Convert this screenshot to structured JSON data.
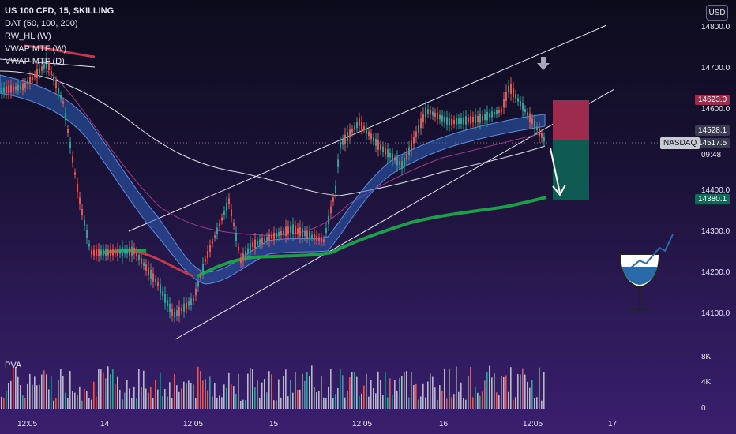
{
  "legend": {
    "title": "US 100 CFD, 15, SKILLING",
    "indicators": [
      "DAT (50, 100, 200)",
      "RW_HL (W)",
      "VWAP MTF (W)",
      "VWAP MTF (D)"
    ]
  },
  "currency_button": "USD",
  "price_axis": {
    "ticks": [
      "14800.0",
      "14700.0",
      "14600.0",
      "14400.0",
      "14300.0",
      "14200.0",
      "14100.0"
    ],
    "tags": {
      "stop": "14623.0",
      "entry": "14528.1",
      "last": "14517.5",
      "countdown": "09:48",
      "target": "14380.1"
    },
    "symbol_tag": "NASDAQ"
  },
  "volume_panel": {
    "label": "PVA",
    "ticks": [
      "8K",
      "4K",
      "0"
    ]
  },
  "time_axis": {
    "labels": [
      "12:05",
      "14",
      "12:05",
      "15",
      "12:05",
      "16",
      "12:05",
      "17"
    ]
  },
  "colors": {
    "up_candle": "#26a69a",
    "down_candle": "#ef5350",
    "ribbon": "#3a6fd0",
    "vwap_green": "#1e9e48",
    "vwap_red": "#c23a4a",
    "stop_zone": "#9c2b4e",
    "target_zone": "#0f5a52"
  },
  "icons": [
    "arrow-down-icon",
    "wine-glass-chart-icon"
  ]
}
